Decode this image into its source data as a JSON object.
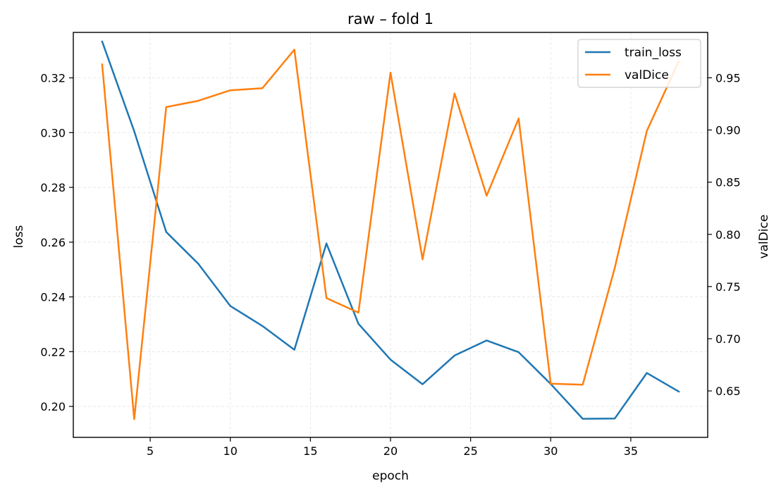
{
  "chart_data": {
    "type": "line",
    "title": "raw – fold 1",
    "xlabel": "epoch",
    "ylabel": "loss",
    "ylabel_right": "valDice",
    "xlim": [
      0.2,
      39.8
    ],
    "ylim": [
      0.1887,
      0.3366
    ],
    "ylim_right": [
      0.6055,
      0.9935
    ],
    "x_ticks": [
      5,
      10,
      15,
      20,
      25,
      30,
      35
    ],
    "y_ticks": [
      0.2,
      0.22,
      0.24,
      0.26,
      0.28,
      0.3,
      0.32
    ],
    "y_ticks_right": [
      0.65,
      0.7,
      0.75,
      0.8,
      0.85,
      0.9,
      0.95
    ],
    "grid": true,
    "legend_position": "top-right",
    "x": [
      2,
      4,
      6,
      8,
      10,
      12,
      14,
      16,
      18,
      20,
      22,
      24,
      26,
      28,
      30,
      32,
      34,
      36,
      38
    ],
    "series": [
      {
        "name": "train_loss",
        "axis": "left",
        "color": "#1f77b4",
        "values": [
          0.3333,
          0.3005,
          0.2637,
          0.2521,
          0.2367,
          0.2294,
          0.2207,
          0.2595,
          0.2302,
          0.2171,
          0.2081,
          0.2186,
          0.2241,
          0.2198,
          0.2082,
          0.1955,
          0.1956,
          0.2122,
          0.2054
        ]
      },
      {
        "name": "valDice",
        "axis": "right",
        "color": "#ff7f0e",
        "values": [
          0.963,
          0.623,
          0.922,
          0.928,
          0.938,
          0.94,
          0.977,
          0.739,
          0.725,
          0.955,
          0.776,
          0.935,
          0.837,
          0.911,
          0.657,
          0.656,
          0.768,
          0.899,
          0.966
        ]
      }
    ]
  }
}
